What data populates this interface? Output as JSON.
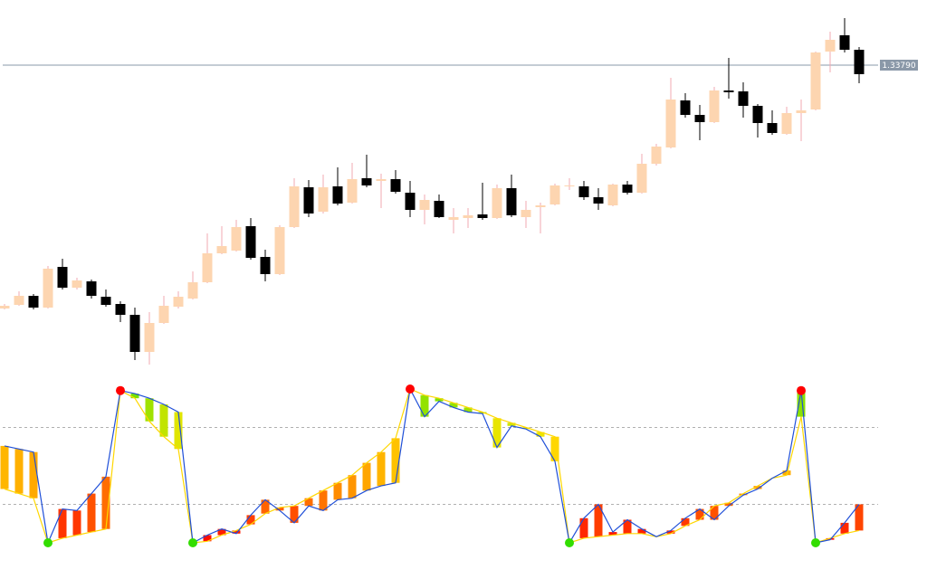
{
  "chart_data": [
    {
      "type": "candlestick",
      "open": [
        1.33521,
        1.33525,
        1.33535,
        1.33522,
        1.33567,
        1.33544,
        1.33551,
        1.33534,
        1.33526,
        1.33514,
        1.33473,
        1.33505,
        1.33523,
        1.33532,
        1.3355,
        1.33582,
        1.33585,
        1.33612,
        1.33578,
        1.33559,
        1.33611,
        1.33655,
        1.33628,
        1.33656,
        1.33638,
        1.33665,
        1.33662,
        1.33664,
        1.33649,
        1.3363,
        1.3364,
        1.33619,
        1.33621,
        1.33625,
        1.33621,
        1.33654,
        1.33622,
        1.33633,
        1.33636,
        1.33656,
        1.33656,
        1.33644,
        1.33635,
        1.33658,
        1.33649,
        1.33681,
        1.33699,
        1.33751,
        1.33735,
        1.33727,
        1.33762,
        1.33761,
        1.33745,
        1.33726,
        1.33714,
        1.33737,
        1.33741,
        1.33805,
        1.33823,
        1.33807
      ],
      "high": [
        1.33526,
        1.3354,
        1.33537,
        1.33568,
        1.33576,
        1.33555,
        1.33553,
        1.33542,
        1.33529,
        1.33522,
        1.33517,
        1.33535,
        1.3354,
        1.33562,
        1.33604,
        1.33612,
        1.33619,
        1.33621,
        1.33586,
        1.33613,
        1.33665,
        1.33663,
        1.33669,
        1.33677,
        1.33682,
        1.33691,
        1.3367,
        1.33674,
        1.33662,
        1.33647,
        1.33647,
        1.33632,
        1.33632,
        1.3366,
        1.33658,
        1.33669,
        1.3364,
        1.33638,
        1.33659,
        1.33665,
        1.33662,
        1.33654,
        1.33659,
        1.33662,
        1.33692,
        1.33703,
        1.33776,
        1.33759,
        1.33746,
        1.33766,
        1.33798,
        1.33771,
        1.33747,
        1.3374,
        1.33744,
        1.33752,
        1.33805,
        1.33827,
        1.33842,
        1.3381
      ],
      "low": [
        1.3352,
        1.33524,
        1.3352,
        1.33521,
        1.33542,
        1.33542,
        1.33532,
        1.33523,
        1.33506,
        1.33464,
        1.33459,
        1.33504,
        1.33521,
        1.33531,
        1.33549,
        1.33581,
        1.33584,
        1.33575,
        1.33551,
        1.33558,
        1.3361,
        1.33622,
        1.33626,
        1.33635,
        1.33637,
        1.33655,
        1.33632,
        1.33648,
        1.33622,
        1.33614,
        1.33621,
        1.33604,
        1.3361,
        1.33619,
        1.3362,
        1.33622,
        1.3361,
        1.33604,
        1.33635,
        1.33652,
        1.33641,
        1.3363,
        1.33634,
        1.33647,
        1.33648,
        1.33679,
        1.33698,
        1.33732,
        1.33707,
        1.33726,
        1.33753,
        1.33732,
        1.3371,
        1.33713,
        1.33713,
        1.33706,
        1.3374,
        1.33782,
        1.33804,
        1.3377
      ],
      "close": [
        1.33524,
        1.33535,
        1.33522,
        1.33565,
        1.33544,
        1.33552,
        1.33535,
        1.33525,
        1.33514,
        1.33473,
        1.33505,
        1.33524,
        1.33534,
        1.3355,
        1.33582,
        1.3359,
        1.33611,
        1.33577,
        1.33559,
        1.33611,
        1.33656,
        1.33626,
        1.33655,
        1.33637,
        1.33664,
        1.33657,
        1.33664,
        1.3365,
        1.3363,
        1.33641,
        1.33622,
        1.33622,
        1.33624,
        1.33621,
        1.33654,
        1.33624,
        1.3363,
        1.33635,
        1.33657,
        1.33657,
        1.33644,
        1.33637,
        1.33658,
        1.33649,
        1.33681,
        1.337,
        1.33752,
        1.33735,
        1.33727,
        1.33762,
        1.3376,
        1.33745,
        1.33726,
        1.33715,
        1.33737,
        1.3374,
        1.33804,
        1.33818,
        1.33807,
        1.3378
      ],
      "up_color": "#fdd5b0",
      "up_wick_color": "#f2a9b2",
      "down_color": "#000000",
      "ylim": [
        1.33452,
        1.33862
      ],
      "price_line": {
        "value": 1.3379,
        "label": "1.33790"
      },
      "price_line_color": "#8a98a8"
    },
    {
      "type": "oscillator",
      "series": [
        {
          "name": "main",
          "color": "#1f4fd8",
          "values": [
            63,
            61,
            59,
            0,
            22,
            21,
            32,
            43,
            99,
            97,
            94,
            90,
            85,
            0,
            5,
            9,
            6,
            18,
            28,
            21,
            13,
            24,
            21,
            28,
            29,
            34,
            37,
            39,
            100,
            82,
            92,
            88,
            85,
            84,
            62,
            76,
            74,
            69,
            53,
            0,
            16,
            25,
            7,
            15,
            9,
            4,
            8,
            16,
            22,
            15,
            24,
            31,
            35,
            42,
            47,
            99,
            0,
            2,
            13,
            25
          ]
        },
        {
          "name": "signal",
          "color": "#ffd700",
          "values": [
            35,
            32,
            29,
            0,
            3,
            5,
            7,
            9,
            99,
            94,
            79,
            69,
            61,
            0,
            1,
            5,
            8,
            12,
            19,
            23,
            24,
            29,
            34,
            39,
            44,
            52,
            59,
            68,
            100,
            96,
            94,
            91,
            88,
            85,
            81,
            78,
            75,
            72,
            69,
            0,
            3,
            4,
            5,
            6,
            6,
            4,
            6,
            11,
            15,
            24,
            26,
            32,
            37,
            42,
            44,
            82,
            0,
            3,
            6,
            8
          ]
        }
      ],
      "bar_colors": [
        "#ff0000",
        "#ff8c00",
        "#ffe600",
        "#5ee000"
      ],
      "high_dot_color": "#ff0000",
      "low_dot_color": "#33dd00",
      "ylim": [
        0,
        100
      ],
      "levels": [
        25,
        75
      ],
      "level_color": "#b0b0b0"
    }
  ]
}
